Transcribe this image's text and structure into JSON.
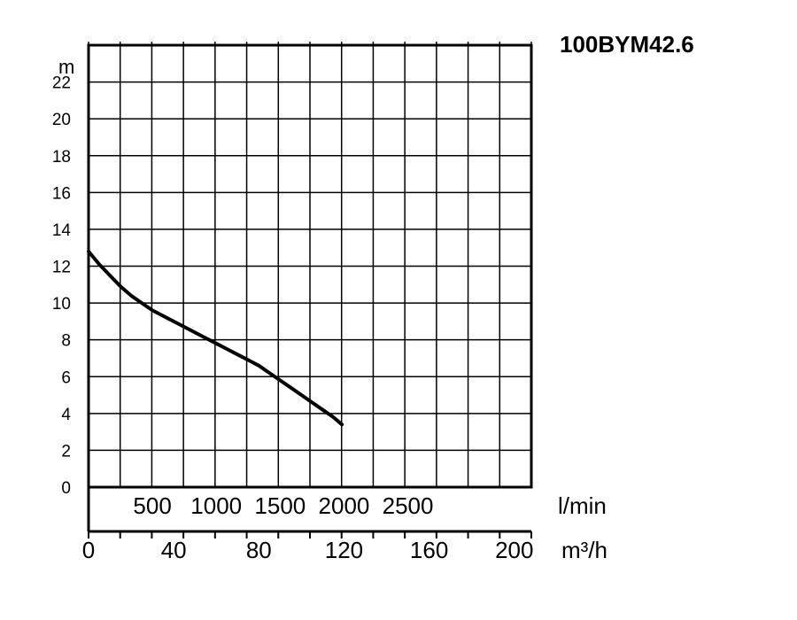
{
  "chart_data": {
    "type": "line",
    "title": "100BYM42.6",
    "ylabel": "m",
    "xlabel_primary": "m³/h",
    "xlabel_secondary": "l/min",
    "xlim": [
      0,
      208
    ],
    "ylim": [
      0,
      24
    ],
    "y_ticks": [
      "0",
      "2",
      "4",
      "6",
      "8",
      "10",
      "12",
      "14",
      "16",
      "18",
      "20",
      "22"
    ],
    "x_ticks_m3h": [
      "0",
      "40",
      "80",
      "120",
      "160",
      "200"
    ],
    "x_ticks_lmin": [
      "500",
      "1000",
      "1500",
      "2000",
      "2500"
    ],
    "grid": true,
    "series": [
      {
        "x": [
          0,
          5,
          10,
          15,
          20,
          25,
          30,
          35,
          40,
          45,
          50,
          55,
          60,
          65,
          70,
          75,
          80,
          85,
          90,
          95,
          100,
          105,
          110,
          115,
          119
        ],
        "y": [
          12.8,
          12.1,
          11.5,
          10.9,
          10.4,
          10.0,
          9.6,
          9.3,
          9.0,
          8.7,
          8.4,
          8.1,
          7.8,
          7.5,
          7.2,
          6.9,
          6.6,
          6.2,
          5.8,
          5.4,
          5.0,
          4.6,
          4.2,
          3.8,
          3.4
        ]
      }
    ]
  }
}
